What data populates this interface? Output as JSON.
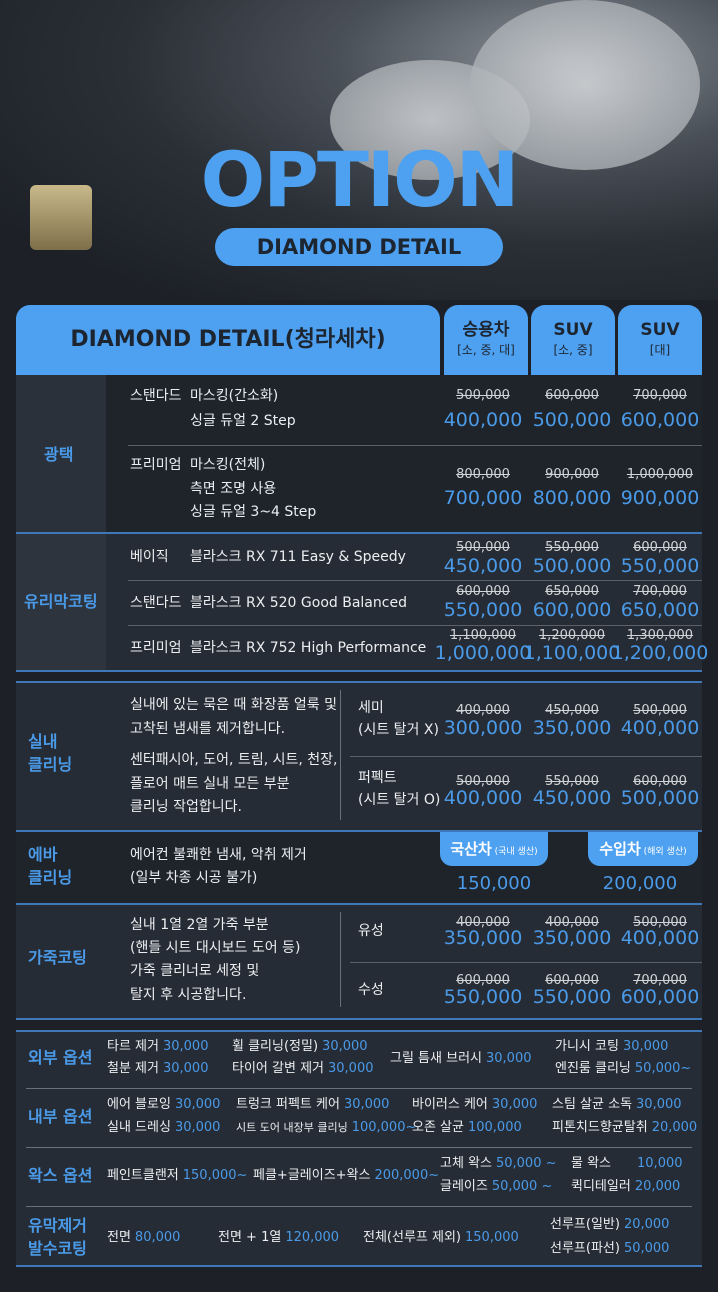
{
  "hero": {
    "title": "OPTION",
    "subtitle": "DIAMOND DETAIL"
  },
  "table": {
    "title": "DIAMOND DETAIL(청라세차)",
    "cols": [
      {
        "name": "승용차",
        "sub": "[소, 중, 대]"
      },
      {
        "name": "SUV",
        "sub": "[소, 중]"
      },
      {
        "name": "SUV",
        "sub": "[대]"
      }
    ]
  },
  "gloss": {
    "label": "광택",
    "rows": [
      {
        "tier": "스탠다드",
        "lines": [
          "마스킹(간소화)",
          "싱글 듀얼 2 Step"
        ],
        "prices": [
          {
            "old": "500,000",
            "new": "400,000"
          },
          {
            "old": "600,000",
            "new": "500,000"
          },
          {
            "old": "700,000",
            "new": "600,000"
          }
        ]
      },
      {
        "tier": "프리미엄",
        "lines": [
          "마스킹(전체)",
          "측면 조명 사용",
          "싱글 듀얼 3~4 Step"
        ],
        "prices": [
          {
            "old": "800,000",
            "new": "700,000"
          },
          {
            "old": "900,000",
            "new": "800,000"
          },
          {
            "old": "1,000,000",
            "new": "900,000"
          }
        ]
      }
    ]
  },
  "glass": {
    "label": "유리막코팅",
    "rows": [
      {
        "tier": "베이직",
        "desc": "블라스크 RX 711 Easy & Speedy",
        "prices": [
          {
            "old": "500,000",
            "new": "450,000"
          },
          {
            "old": "550,000",
            "new": "500,000"
          },
          {
            "old": "600,000",
            "new": "550,000"
          }
        ]
      },
      {
        "tier": "스탠다드",
        "desc": "블라스크 RX 520 Good Balanced",
        "prices": [
          {
            "old": "600,000",
            "new": "550,000"
          },
          {
            "old": "650,000",
            "new": "600,000"
          },
          {
            "old": "700,000",
            "new": "650,000"
          }
        ]
      },
      {
        "tier": "프리미엄",
        "desc": "블라스크 RX 752 High Performance",
        "prices": [
          {
            "old": "1,100,000",
            "new": "1,000,000"
          },
          {
            "old": "1,200,000",
            "new": "1,100,000"
          },
          {
            "old": "1,300,000",
            "new": "1,200,000"
          }
        ]
      }
    ]
  },
  "interior": {
    "label": [
      "실내",
      "클리닝"
    ],
    "desc": [
      "실내에 있는 묵은 때 화장품 얼룩 및",
      "고착된 냄새를 제거합니다.",
      "센터패시아, 도어, 트림, 시트, 천장,",
      "플로어 매트 실내 모든 부분",
      "클리닝 작업합니다."
    ],
    "rows": [
      {
        "name": "세미",
        "sub": "(시트 탈거 X)",
        "prices": [
          {
            "old": "400,000",
            "new": "300,000"
          },
          {
            "old": "450,000",
            "new": "350,000"
          },
          {
            "old": "500,000",
            "new": "400,000"
          }
        ]
      },
      {
        "name": "퍼펙트",
        "sub": "(시트 탈거 O)",
        "prices": [
          {
            "old": "500,000",
            "new": "400,000"
          },
          {
            "old": "550,000",
            "new": "450,000"
          },
          {
            "old": "600,000",
            "new": "500,000"
          }
        ]
      }
    ]
  },
  "eva": {
    "label": [
      "에바",
      "클리닝"
    ],
    "desc": [
      "에어컨 불쾌한 냄새, 악취 제거",
      "(일부 차종 시공 불가)"
    ],
    "cols": [
      {
        "name": "국산차",
        "sub": "(국내 생산)",
        "price": "150,000"
      },
      {
        "name": "수입차",
        "sub": "(해외 생산)",
        "price": "200,000"
      }
    ]
  },
  "leather": {
    "label": "가죽코팅",
    "desc": [
      "실내 1열 2열 가죽 부분",
      "(핸들 시트 대시보드 도어 등)",
      "가죽 클리너로 세정 및",
      "탈지 후 시공합니다."
    ],
    "rows": [
      {
        "name": "유성",
        "prices": [
          {
            "old": "400,000",
            "new": "350,000"
          },
          {
            "old": "400,000",
            "new": "350,000"
          },
          {
            "old": "500,000",
            "new": "400,000"
          }
        ]
      },
      {
        "name": "수성",
        "prices": [
          {
            "old": "600,000",
            "new": "550,000"
          },
          {
            "old": "600,000",
            "new": "550,000"
          },
          {
            "old": "700,000",
            "new": "600,000"
          }
        ]
      }
    ]
  },
  "options": [
    {
      "label": [
        "외부 옵션"
      ],
      "items": [
        {
          "name": "타르 제거",
          "price": "30,000"
        },
        {
          "name": "철분 제거",
          "price": "30,000"
        },
        {
          "name": "휠 클리닝(정밀)",
          "price": "30,000"
        },
        {
          "name": "타이어 갈변 제거",
          "price": "30,000"
        },
        {
          "name": "그릴 틈새 브러시",
          "price": "30,000"
        },
        {
          "name": "가니시 코팅",
          "price": "30,000"
        },
        {
          "name": "엔진룸 클리닝",
          "price": "50,000~"
        }
      ]
    },
    {
      "label": [
        "내부 옵션"
      ],
      "items": [
        {
          "name": "에어 블로잉",
          "price": "30,000"
        },
        {
          "name": "실내 드레싱",
          "price": "30,000"
        },
        {
          "name": "트렁크 퍼펙트 케어",
          "price": "30,000"
        },
        {
          "name": "시트 도어 내장부 클리닝",
          "price": "100,000~"
        },
        {
          "name": "바이러스 케어",
          "price": "30,000"
        },
        {
          "name": "오존 살균",
          "price": "100,000"
        },
        {
          "name": "스팀 살균 소독",
          "price": "30,000"
        },
        {
          "name": "피톤치드향균탈취",
          "price": "20,000"
        }
      ]
    },
    {
      "label": [
        "왁스 옵션"
      ],
      "items": [
        {
          "name": "페인트클랜저",
          "price": "150,000~"
        },
        {
          "name": "페클+글레이즈+왁스",
          "price": "200,000~"
        },
        {
          "name": "고체 왁스",
          "price": "50,000 ~"
        },
        {
          "name": "글레이즈",
          "price": "50,000 ~"
        },
        {
          "name": "물 왁스",
          "price": "10,000"
        },
        {
          "name": "퀵디테일러",
          "price": "20,000"
        }
      ]
    },
    {
      "label": [
        "유막제거",
        "발수코팅"
      ],
      "items": [
        {
          "name": "전면",
          "price": "80,000"
        },
        {
          "name": "전면 + 1열",
          "price": "120,000"
        },
        {
          "name": "전체(선루프 제외)",
          "price": "150,000"
        },
        {
          "name": "선루프(일반)",
          "price": "20,000"
        },
        {
          "name": "선루프(파선)",
          "price": "50,000"
        }
      ]
    }
  ],
  "colors": {
    "accent": "#4ea1f0",
    "background": "#1d2127"
  }
}
